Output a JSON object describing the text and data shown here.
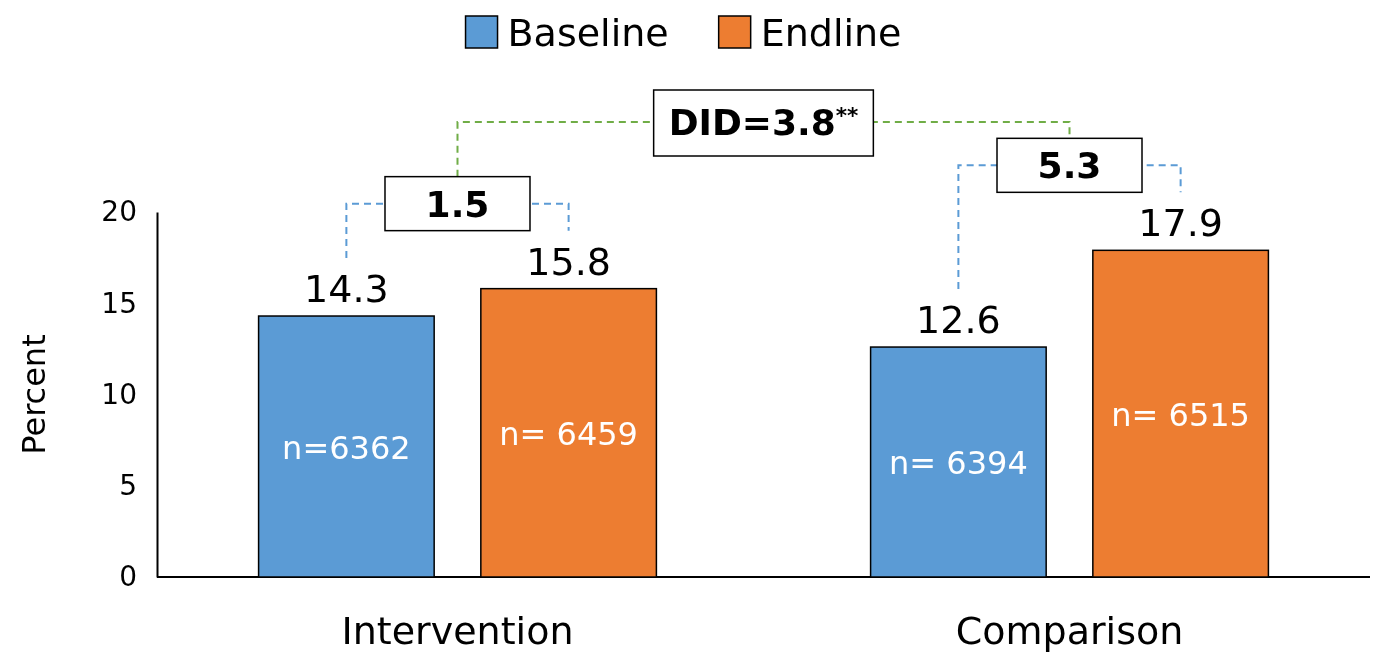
{
  "chart_data": {
    "type": "bar",
    "ylabel": "Percent",
    "categories": [
      "Intervention",
      "Comparison"
    ],
    "series": [
      {
        "name": "Baseline",
        "color": "#5b9bd5",
        "values": [
          14.3,
          12.6
        ]
      },
      {
        "name": "Endline",
        "color": "#ed7d31",
        "values": [
          15.8,
          17.9
        ]
      }
    ],
    "ylim": [
      0,
      20
    ],
    "yticks": [
      0,
      5,
      10,
      15,
      20
    ],
    "data_labels": true,
    "legend": "top",
    "grid": false,
    "annotations": [
      "n=6362",
      "n= 6459",
      "n= 6394",
      "n= 6515",
      "1.5",
      "5.3",
      "DID=3.8$^{**}$"
    ]
  }
}
